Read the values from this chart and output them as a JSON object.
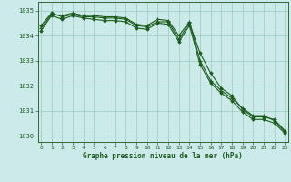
{
  "x": [
    0,
    1,
    2,
    3,
    4,
    5,
    6,
    7,
    8,
    9,
    10,
    11,
    12,
    13,
    14,
    15,
    16,
    17,
    18,
    19,
    20,
    21,
    22,
    23
  ],
  "line1": [
    1034.4,
    1034.9,
    1034.75,
    1034.85,
    1034.75,
    1034.75,
    1034.7,
    1034.7,
    1034.65,
    1034.4,
    1034.35,
    1034.55,
    1034.55,
    1033.85,
    1034.5,
    1033.3,
    1032.5,
    1031.9,
    1031.6,
    1031.05,
    1030.75,
    1030.75,
    1030.65,
    1030.2
  ],
  "line2": [
    1034.3,
    1034.85,
    1034.8,
    1034.9,
    1034.8,
    1034.8,
    1034.75,
    1034.75,
    1034.7,
    1034.45,
    1034.4,
    1034.65,
    1034.6,
    1034.0,
    1034.55,
    1033.0,
    1032.2,
    1031.8,
    1031.5,
    1031.1,
    1030.8,
    1030.8,
    1030.6,
    1030.15
  ],
  "line3": [
    1034.2,
    1034.8,
    1034.65,
    1034.8,
    1034.7,
    1034.65,
    1034.6,
    1034.6,
    1034.55,
    1034.3,
    1034.25,
    1034.5,
    1034.45,
    1033.75,
    1034.4,
    1032.85,
    1032.1,
    1031.7,
    1031.4,
    1030.95,
    1030.65,
    1030.65,
    1030.5,
    1030.1
  ],
  "ylim": [
    1029.75,
    1035.35
  ],
  "yticks": [
    1030,
    1031,
    1032,
    1033,
    1034,
    1035
  ],
  "xticks": [
    0,
    1,
    2,
    3,
    4,
    5,
    6,
    7,
    8,
    9,
    10,
    11,
    12,
    13,
    14,
    15,
    16,
    17,
    18,
    19,
    20,
    21,
    22,
    23
  ],
  "xlabel": "Graphe pression niveau de la mer (hPa)",
  "line_color": "#1a5c1a",
  "bg_color": "#cceaea",
  "grid_color": "#99ccbb",
  "axis_color": "#336633",
  "xlabel_color": "#1a5c1a",
  "tick_color": "#1a5c1a"
}
